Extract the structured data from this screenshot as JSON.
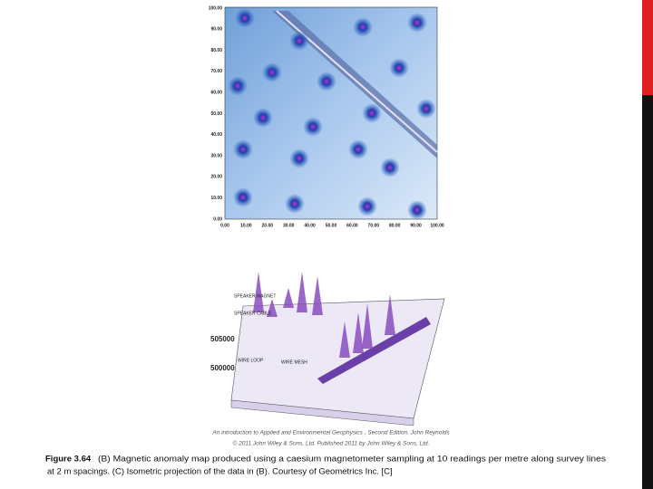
{
  "figure_b": {
    "y_labels": [
      "100.00",
      "90.00",
      "80.00",
      "70.00",
      "60.00",
      "50.00",
      "40.00",
      "30.00",
      "20.00",
      "10.00",
      "0.00"
    ],
    "x_labels": [
      "0.00",
      "10.00",
      "20.00",
      "30.00",
      "40.00",
      "50.00",
      "60.00",
      "70.00",
      "80.00",
      "90.00",
      "100.00"
    ]
  },
  "figure_c": {
    "labels": [
      "SPEAKER MAGNET",
      "SPEAKER CABLE",
      "505000",
      "500000",
      "WIRE LOOP",
      "WIRE MESH"
    ]
  },
  "credit": [
    "An introduction to Applied and Environmental Geophysics , Second Edition. John Reynolds",
    "© 2011 John Wiley & Sons, Ltd. Published 2011 by John Wiley & Sons, Ltd."
  ],
  "caption": {
    "label": "Figure 3.64",
    "lines": [
      "(B) Magnetic anomaly map produced using a caesium magnetometer sampling at 10 readings per metre along survey lines",
      "at 2 m spacings. (C) Isometric  projection of the data in (B). Courtesy of Geometrics Inc. [C]"
    ]
  }
}
